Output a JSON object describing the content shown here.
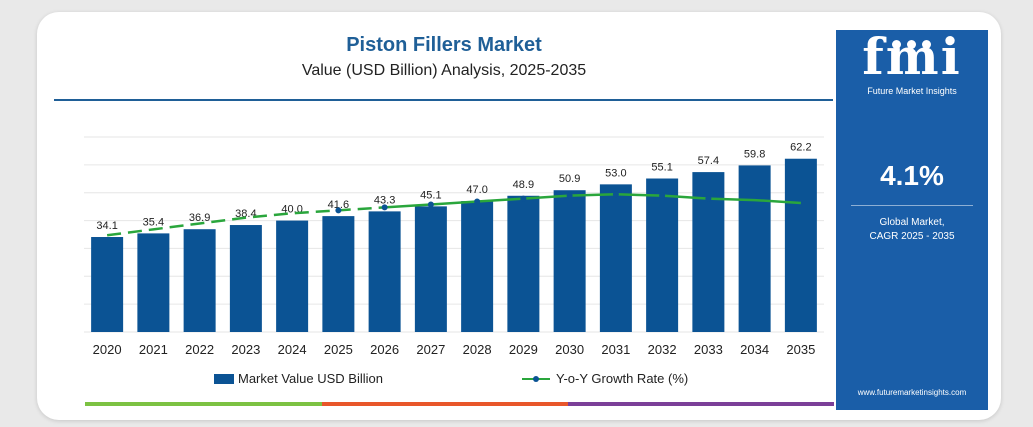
{
  "chart_data": {
    "type": "bar",
    "title": "Piston Fillers Market",
    "subtitle": "Value (USD Billion) Analysis, 2025-2035",
    "categories": [
      "2020",
      "2021",
      "2022",
      "2023",
      "2024",
      "2025",
      "2026",
      "2027",
      "2028",
      "2029",
      "2030",
      "2031",
      "2032",
      "2033",
      "2034",
      "2035"
    ],
    "series": [
      {
        "name": "Market Value USD Billion",
        "kind": "bar",
        "values": [
          34.1,
          35.4,
          36.9,
          38.4,
          40.0,
          41.6,
          43.3,
          45.1,
          47.0,
          48.9,
          50.9,
          53.0,
          55.1,
          57.4,
          59.8,
          62.2
        ],
        "labels": [
          "34.1",
          "35.4",
          "36.9",
          "38.4",
          "40.0",
          "41.6",
          "43.3",
          "45.1",
          "47.0",
          "48.9",
          "50.9",
          "53.0",
          "55.1",
          "57.4",
          "59.8",
          "62.2"
        ]
      },
      {
        "name": "Y-o-Y Growth Rate (%)",
        "kind": "line",
        "values": [
          3.1,
          3.3,
          3.5,
          3.7,
          3.85,
          3.95,
          4.05,
          4.15,
          4.25,
          4.35,
          4.45,
          4.5,
          4.45,
          4.35,
          4.3,
          4.2
        ]
      }
    ],
    "ylim": [
      0,
      70
    ],
    "grid": true,
    "legend_position": "bottom",
    "colors": {
      "bar": "#0b5394",
      "line": "#2aa63c",
      "line_marker": "#0b5394"
    }
  },
  "side_panel": {
    "logo": "fmi",
    "brand": "Future Market Insights",
    "cagr_value": "4.1%",
    "cagr_label_line1": "Global Market,",
    "cagr_label_line2": "CAGR 2025 - 2035",
    "website": "www.futuremarketinsights.com",
    "background": "#1a5ea8"
  },
  "bottom_bar_colors": [
    "#7cc242",
    "#e8562a",
    "#7b3f98"
  ]
}
